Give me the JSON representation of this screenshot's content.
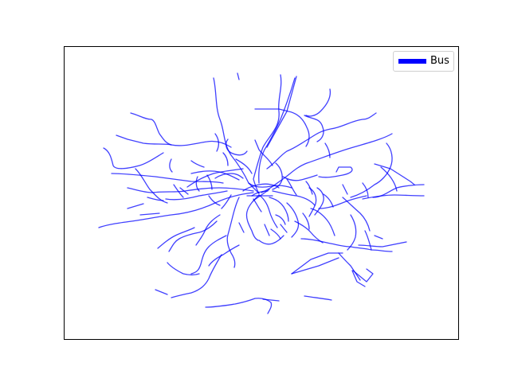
{
  "map": {
    "legend": {
      "label": "Bus",
      "color": "#0000ff"
    },
    "route_color": "#0000ff",
    "route_opacity": 0.75,
    "axes_visible": false,
    "grid": false,
    "legend_placement": "top-right"
  }
}
